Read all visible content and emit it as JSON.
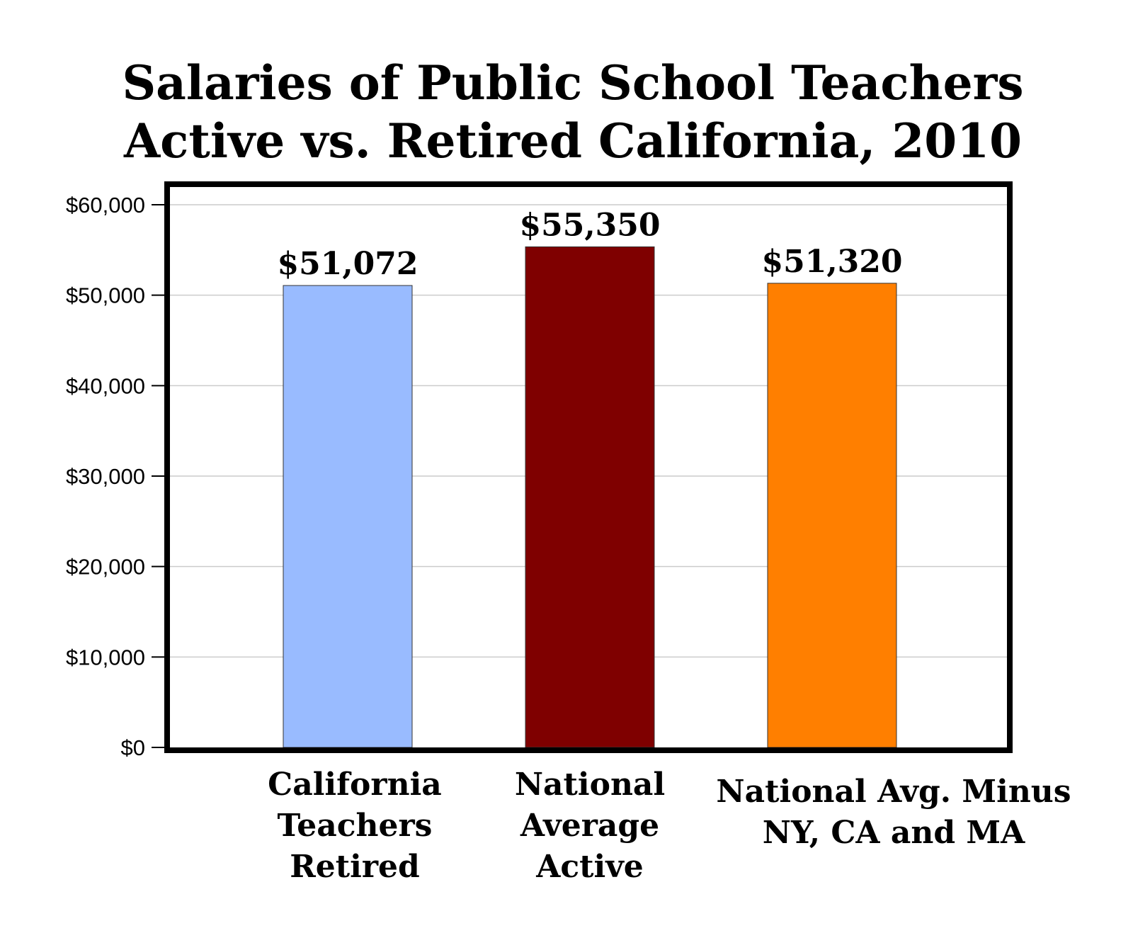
{
  "chart_data": {
    "type": "bar",
    "title": [
      "Salaries of Public School Teachers",
      "Active vs. Retired California, 2010"
    ],
    "xlabel": "",
    "ylabel": "",
    "ylim": [
      0,
      60000
    ],
    "yticks": [
      {
        "value": 0,
        "label": "$0"
      },
      {
        "value": 10000,
        "label": "$10,000"
      },
      {
        "value": 20000,
        "label": "$20,000"
      },
      {
        "value": 30000,
        "label": "$30,000"
      },
      {
        "value": 40000,
        "label": "$40,000"
      },
      {
        "value": 50000,
        "label": "$50,000"
      },
      {
        "value": 60000,
        "label": "$60,000"
      }
    ],
    "grid": true,
    "legend": "none",
    "categories": [
      [
        "California",
        "Teachers",
        "Retired"
      ],
      [
        "National",
        "Average",
        "Active"
      ],
      [
        "National Avg. Minus",
        "NY, CA and MA"
      ]
    ],
    "values": [
      51072,
      55350,
      51320
    ],
    "value_labels": [
      "$51,072",
      "$55,350",
      "$51,320"
    ],
    "colors": [
      "#99bbff",
      "#7f0000",
      "#ff7f00"
    ]
  }
}
